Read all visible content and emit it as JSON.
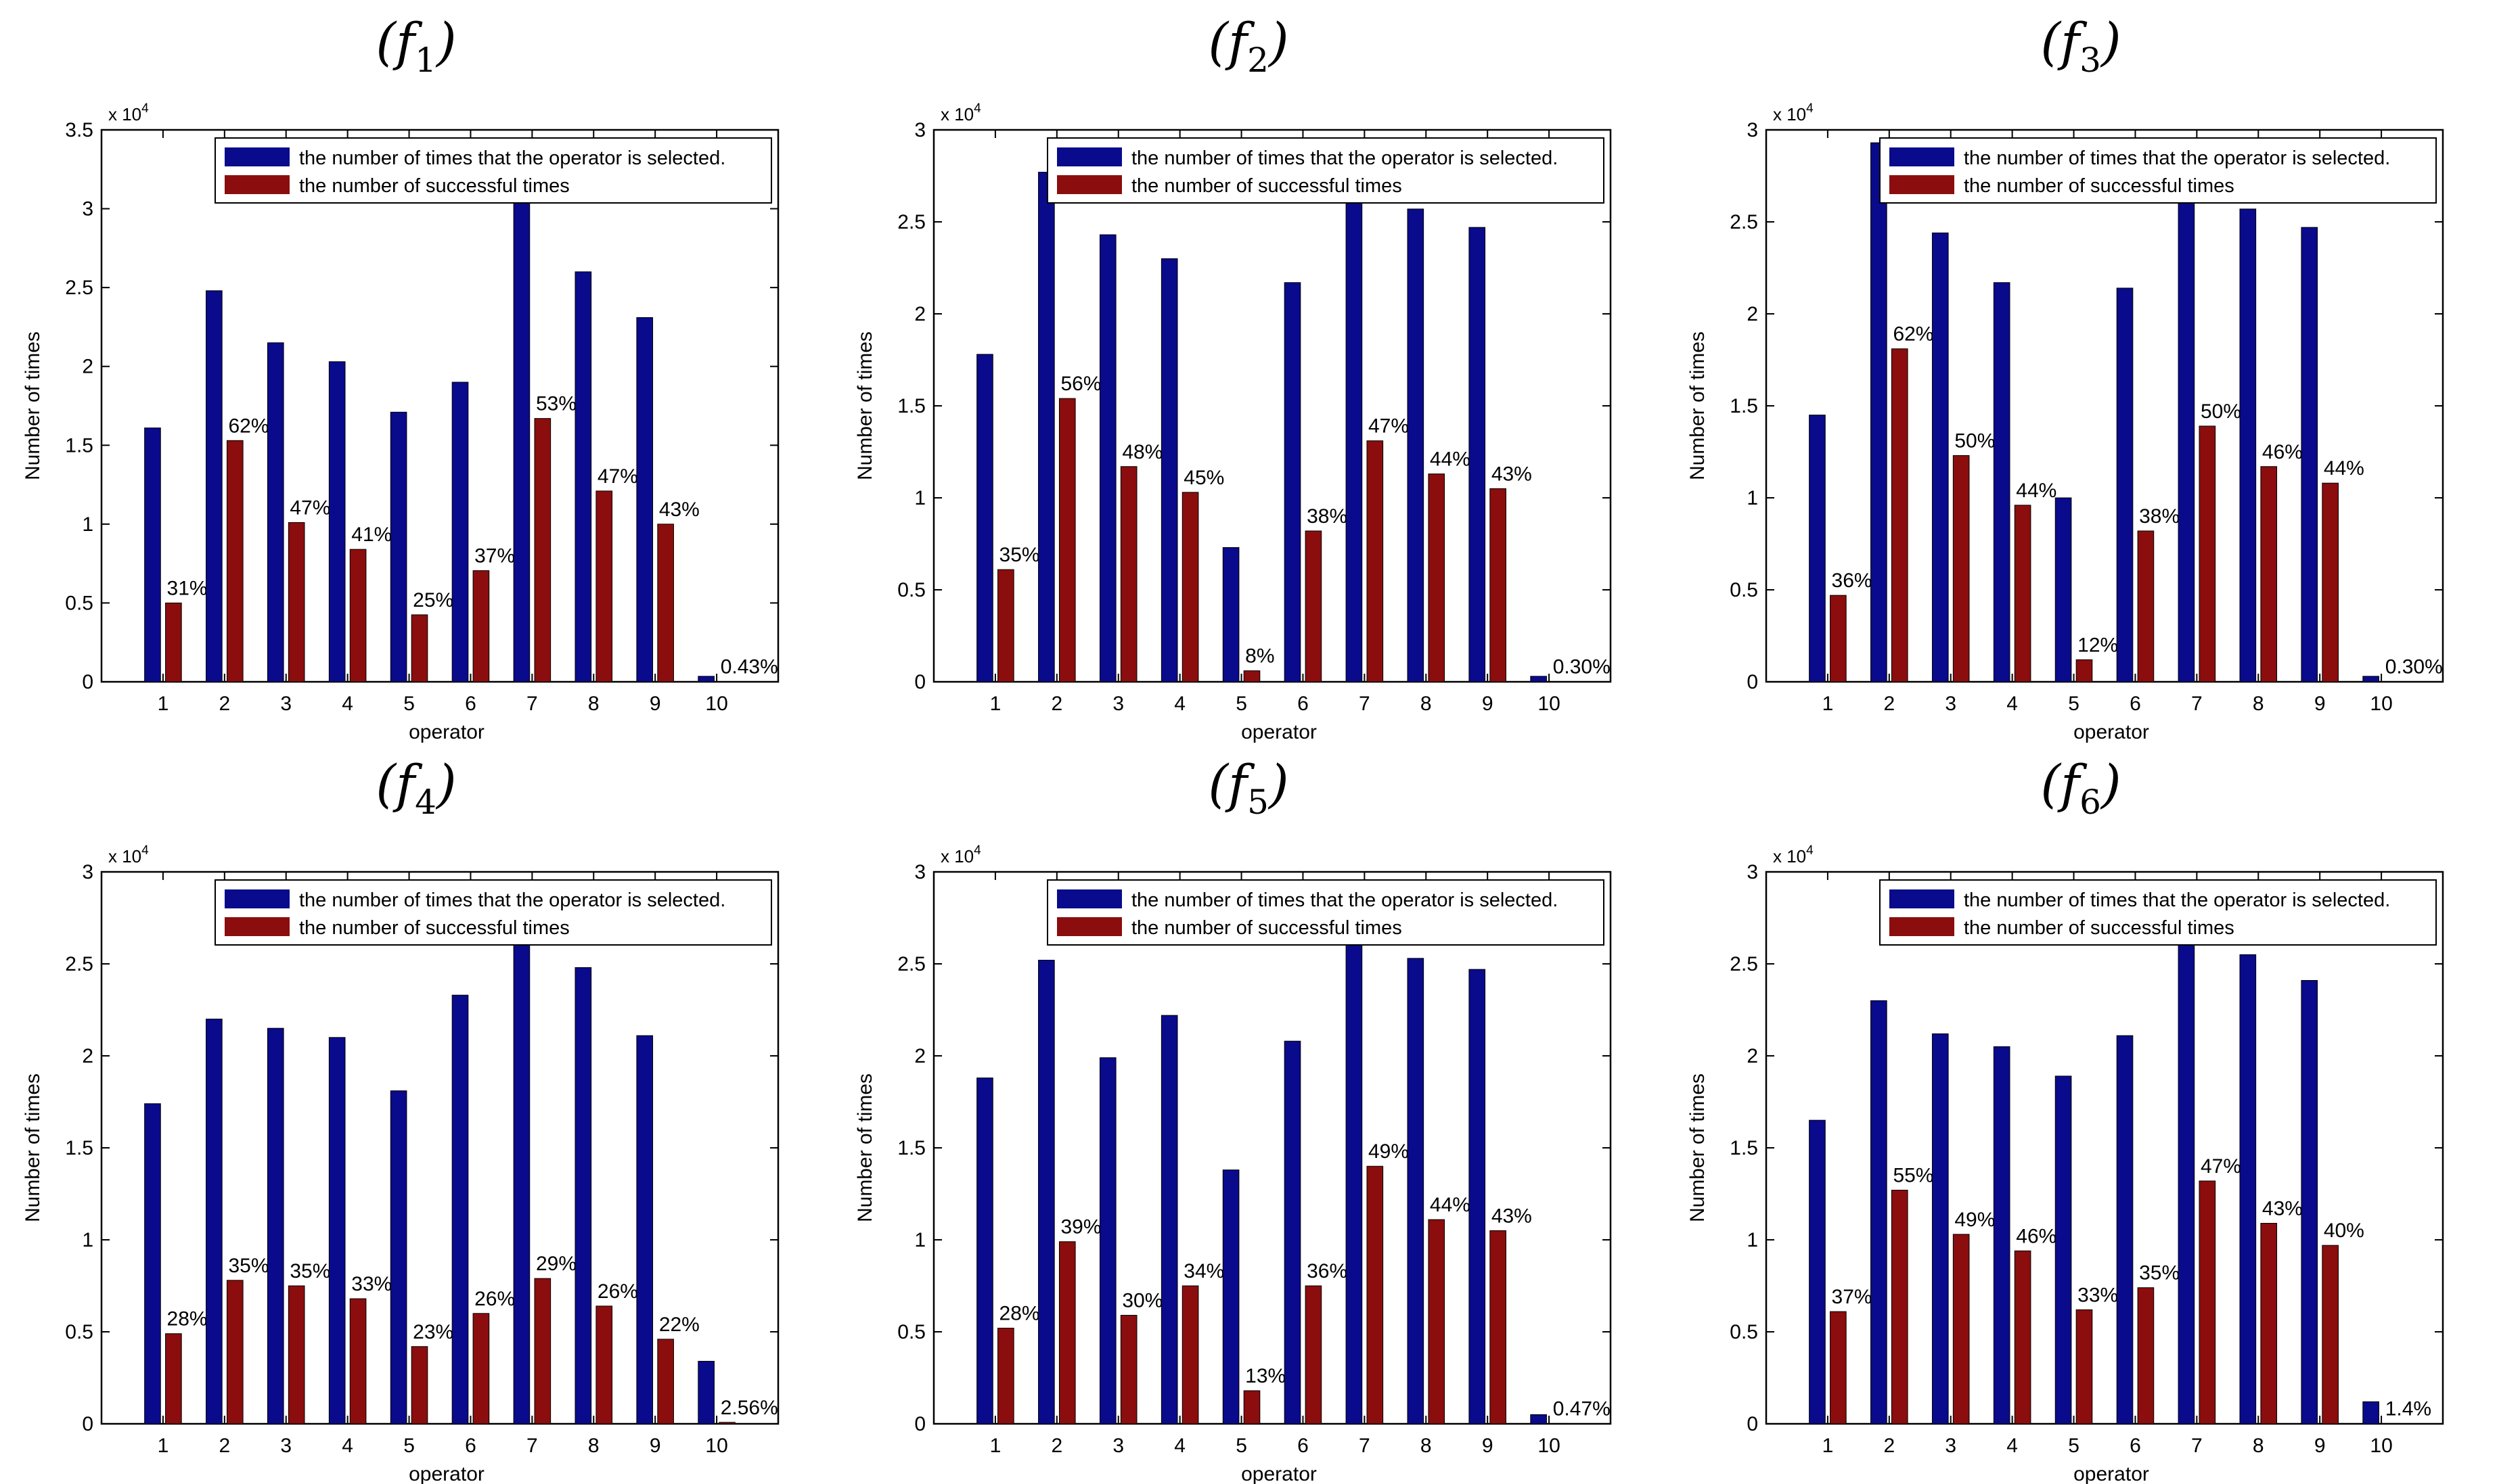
{
  "colors": {
    "selected": "#0a0a8c",
    "successful": "#8b0d0d",
    "axis": "#000000"
  },
  "chart_data": [
    {
      "type": "bar",
      "title": "(f",
      "subscript": "1",
      "xlabel": "operator",
      "ylabel": "Number of times",
      "exponent_base": "x 10",
      "exponent_power": "4",
      "categories": [
        "1",
        "2",
        "3",
        "4",
        "5",
        "6",
        "7",
        "8",
        "9",
        "10"
      ],
      "ylim": [
        0,
        35000
      ],
      "yticks": [
        0,
        5000,
        10000,
        15000,
        20000,
        25000,
        30000,
        35000
      ],
      "ytick_labels": [
        "0",
        "0.5",
        "1",
        "1.5",
        "2",
        "2.5",
        "3",
        "3.5"
      ],
      "series": [
        {
          "name": "the number of times that the operator is selected.",
          "values": [
            16100,
            24800,
            21500,
            20300,
            17100,
            19000,
            31000,
            26000,
            23100,
            350
          ]
        },
        {
          "name": "the number of successful times",
          "values": [
            5000,
            15300,
            10100,
            8400,
            4250,
            7050,
            16700,
            12100,
            10000,
            15
          ]
        }
      ],
      "data_labels": [
        "31%",
        "62%",
        "47%",
        "41%",
        "25%",
        "37%",
        "53%",
        "47%",
        "43%",
        "0.43%"
      ]
    },
    {
      "type": "bar",
      "title": "(f",
      "subscript": "2",
      "xlabel": "operator",
      "ylabel": "Number of times",
      "exponent_base": "x 10",
      "exponent_power": "4",
      "categories": [
        "1",
        "2",
        "3",
        "4",
        "5",
        "6",
        "7",
        "8",
        "9",
        "10"
      ],
      "ylim": [
        0,
        30000
      ],
      "yticks": [
        0,
        5000,
        10000,
        15000,
        20000,
        25000,
        30000
      ],
      "ytick_labels": [
        "0",
        "0.5",
        "1",
        "1.5",
        "2",
        "2.5",
        "3"
      ],
      "series": [
        {
          "name": "the number of times that the operator is selected.",
          "values": [
            17800,
            27700,
            24300,
            23000,
            7300,
            21700,
            26300,
            25700,
            24700,
            300
          ]
        },
        {
          "name": "the number of successful times",
          "values": [
            6100,
            15400,
            11700,
            10300,
            600,
            8200,
            13100,
            11300,
            10500,
            10
          ]
        }
      ],
      "data_labels": [
        "35%",
        "56%",
        "48%",
        "45%",
        "8%",
        "38%",
        "47%",
        "44%",
        "43%",
        "0.30%"
      ]
    },
    {
      "type": "bar",
      "title": "(f",
      "subscript": "3",
      "xlabel": "operator",
      "ylabel": "Number of times",
      "exponent_base": "x 10",
      "exponent_power": "4",
      "categories": [
        "1",
        "2",
        "3",
        "4",
        "5",
        "6",
        "7",
        "8",
        "9",
        "10"
      ],
      "ylim": [
        0,
        30000
      ],
      "yticks": [
        0,
        5000,
        10000,
        15000,
        20000,
        25000,
        30000
      ],
      "ytick_labels": [
        "0",
        "0.5",
        "1",
        "1.5",
        "2",
        "2.5",
        "3"
      ],
      "series": [
        {
          "name": "the number of times that the operator is selected.",
          "values": [
            14500,
            29300,
            24400,
            21700,
            10000,
            21400,
            26300,
            25700,
            24700,
            300
          ]
        },
        {
          "name": "the number of successful times",
          "values": [
            4700,
            18100,
            12300,
            9600,
            1200,
            8200,
            13900,
            11700,
            10800,
            10
          ]
        }
      ],
      "data_labels": [
        "36%",
        "62%",
        "50%",
        "44%",
        "12%",
        "38%",
        "50%",
        "46%",
        "44%",
        "0.30%"
      ]
    },
    {
      "type": "bar",
      "title": "(f",
      "subscript": "4",
      "xlabel": "operator",
      "ylabel": "Number of times",
      "exponent_base": "x 10",
      "exponent_power": "4",
      "categories": [
        "1",
        "2",
        "3",
        "4",
        "5",
        "6",
        "7",
        "8",
        "9",
        "10"
      ],
      "ylim": [
        0,
        30000
      ],
      "yticks": [
        0,
        5000,
        10000,
        15000,
        20000,
        25000,
        30000
      ],
      "ytick_labels": [
        "0",
        "0.5",
        "1",
        "1.5",
        "2",
        "2.5",
        "3"
      ],
      "series": [
        {
          "name": "the number of times that the operator is selected.",
          "values": [
            17400,
            22000,
            21500,
            21000,
            18100,
            23300,
            26300,
            24800,
            21100,
            3400
          ]
        },
        {
          "name": "the number of successful times",
          "values": [
            4900,
            7800,
            7500,
            6800,
            4200,
            6000,
            7900,
            6400,
            4600,
            80
          ]
        }
      ],
      "data_labels": [
        "28%",
        "35%",
        "35%",
        "33%",
        "23%",
        "26%",
        "29%",
        "26%",
        "22%",
        "2.56%"
      ]
    },
    {
      "type": "bar",
      "title": "(f",
      "subscript": "5",
      "xlabel": "operator",
      "ylabel": "Number of times",
      "exponent_base": "x 10",
      "exponent_power": "4",
      "categories": [
        "1",
        "2",
        "3",
        "4",
        "5",
        "6",
        "7",
        "8",
        "9",
        "10"
      ],
      "ylim": [
        0,
        30000
      ],
      "yticks": [
        0,
        5000,
        10000,
        15000,
        20000,
        25000,
        30000
      ],
      "ytick_labels": [
        "0",
        "0.5",
        "1",
        "1.5",
        "2",
        "2.5",
        "3"
      ],
      "series": [
        {
          "name": "the number of times that the operator is selected.",
          "values": [
            18800,
            25200,
            19900,
            22200,
            13800,
            20800,
            26300,
            25300,
            24700,
            500
          ]
        },
        {
          "name": "the number of successful times",
          "values": [
            5200,
            9900,
            5900,
            7500,
            1800,
            7500,
            14000,
            11100,
            10500,
            20
          ]
        }
      ],
      "data_labels": [
        "28%",
        "39%",
        "30%",
        "34%",
        "13%",
        "36%",
        "49%",
        "44%",
        "43%",
        "0.47%"
      ]
    },
    {
      "type": "bar",
      "title": "(f",
      "subscript": "6",
      "xlabel": "operator",
      "ylabel": "Number of times",
      "exponent_base": "x 10",
      "exponent_power": "4",
      "categories": [
        "1",
        "2",
        "3",
        "4",
        "5",
        "6",
        "7",
        "8",
        "9",
        "10"
      ],
      "ylim": [
        0,
        30000
      ],
      "yticks": [
        0,
        5000,
        10000,
        15000,
        20000,
        25000,
        30000
      ],
      "ytick_labels": [
        "0",
        "0.5",
        "1",
        "1.5",
        "2",
        "2.5",
        "3"
      ],
      "series": [
        {
          "name": "the number of times that the operator is selected.",
          "values": [
            16500,
            23000,
            21200,
            20500,
            18900,
            21100,
            26300,
            25500,
            24100,
            1200
          ]
        },
        {
          "name": "the number of successful times",
          "values": [
            6100,
            12700,
            10300,
            9400,
            6200,
            7400,
            13200,
            10900,
            9700,
            20
          ]
        }
      ],
      "data_labels": [
        "37%",
        "55%",
        "49%",
        "46%",
        "33%",
        "35%",
        "47%",
        "43%",
        "40%",
        "1.4%"
      ]
    }
  ]
}
